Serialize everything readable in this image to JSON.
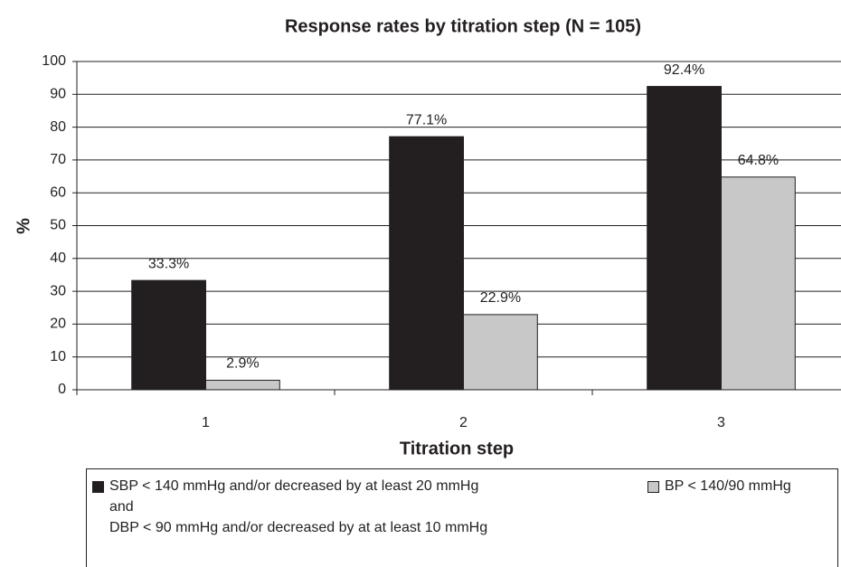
{
  "chart_data": {
    "type": "bar",
    "title": "Response rates by titration step (N = 105)",
    "x_label": "Titration step",
    "y_label": "%",
    "categories": [
      "1",
      "2",
      "3"
    ],
    "series": [
      {
        "name": "SBP < 140 mmHg and/or decreased by at least 20 mmHg\nand\nDBP < 90 mmHg and/or decreased by at at least 10 mmHg",
        "color": "#231f20",
        "values": [
          33.3,
          77.1,
          92.4
        ],
        "value_labels": [
          "33.3%",
          "77.1%",
          "92.4%"
        ]
      },
      {
        "name": "BP < 140/90 mmHg",
        "color": "#c8c8c8",
        "values": [
          2.9,
          22.9,
          64.8
        ],
        "value_labels": [
          "2.9%",
          "22.9%",
          "64.8%"
        ]
      }
    ],
    "ylim": [
      0,
      100
    ],
    "yticks": [
      0,
      10,
      20,
      30,
      40,
      50,
      60,
      70,
      80,
      90,
      100
    ],
    "grid": true
  }
}
